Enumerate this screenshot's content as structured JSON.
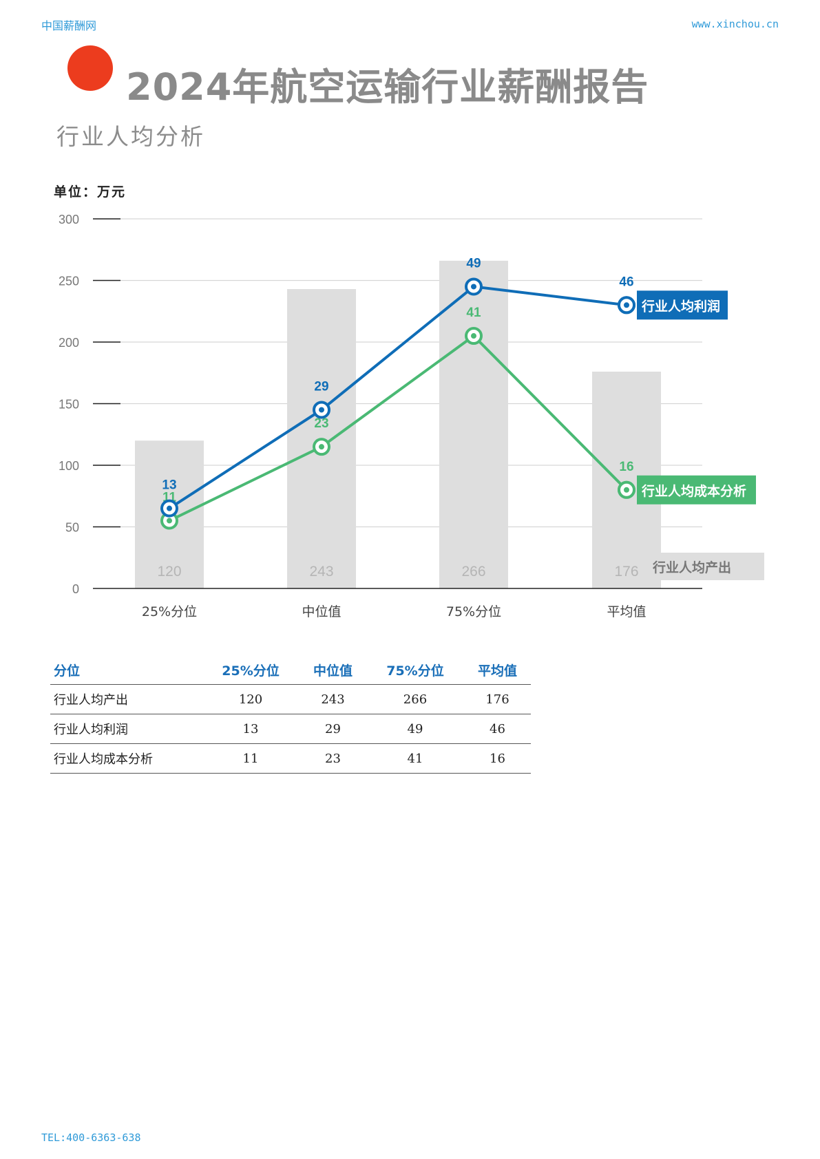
{
  "header": {
    "left": "中国薪酬网",
    "right": "www.xinchou.cn"
  },
  "title": "2024年航空运输行业薪酬报告",
  "subtitle": "行业人均分析",
  "unit_label": "单位：万元",
  "colors": {
    "accent_dot": "#ec3c1e",
    "profit": "#0f6db7",
    "cost": "#4ab974",
    "bar": "#dedede"
  },
  "chart_data": {
    "type": "bar",
    "categories": [
      "25%分位",
      "中位值",
      "75%分位",
      "平均值"
    ],
    "ylim": [
      0,
      300
    ],
    "yticks": [
      0,
      50,
      100,
      150,
      200,
      250,
      300
    ],
    "grid": true,
    "series": [
      {
        "name": "行业人均产出",
        "type": "bar",
        "values": [
          120,
          243,
          266,
          176
        ],
        "labels": [
          "120",
          "243",
          "266",
          "176"
        ]
      },
      {
        "name": "行业人均利润",
        "type": "line",
        "values": [
          65,
          145,
          245,
          230
        ],
        "labels": [
          "13",
          "29",
          "49",
          "46"
        ]
      },
      {
        "name": "行业人均成本分析",
        "type": "line",
        "values": [
          55,
          115,
          205,
          80
        ],
        "labels": [
          "11",
          "23",
          "41",
          "16"
        ]
      }
    ]
  },
  "table": {
    "headers": [
      "分位",
      "25%分位",
      "中位值",
      "75%分位",
      "平均值"
    ],
    "rows": [
      [
        "行业人均产出",
        "120",
        "243",
        "266",
        "176"
      ],
      [
        "行业人均利润",
        "13",
        "29",
        "49",
        "46"
      ],
      [
        "行业人均成本分析",
        "11",
        "23",
        "41",
        "16"
      ]
    ]
  },
  "footer": "TEL:400-6363-638"
}
